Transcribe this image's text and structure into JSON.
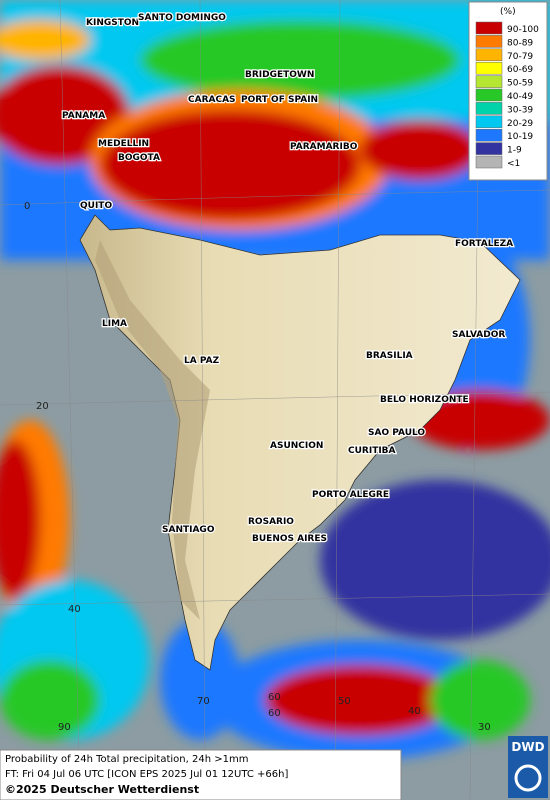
{
  "legend": {
    "title": "(%)",
    "entries": [
      {
        "label": "90-100",
        "color": "#c80000"
      },
      {
        "label": "80-89",
        "color": "#ff7a00"
      },
      {
        "label": "70-79",
        "color": "#ffb400"
      },
      {
        "label": "60-69",
        "color": "#ffff00"
      },
      {
        "label": "50-59",
        "color": "#b4e632"
      },
      {
        "label": "40-49",
        "color": "#28c828"
      },
      {
        "label": "30-39",
        "color": "#00d2aa"
      },
      {
        "label": "20-29",
        "color": "#00c8f0"
      },
      {
        "label": "10-19",
        "color": "#1e78ff"
      },
      {
        "label": "1-9",
        "color": "#3232a0"
      },
      {
        "label": "<1",
        "color": "#b4b4b4"
      }
    ]
  },
  "cities": [
    "KINGSTON",
    "SANTO DOMINGO",
    "BRIDGETOWN",
    "CARACAS",
    "PORT OF SPAIN",
    "PANAMA",
    "MEDELLIN",
    "BOGOTA",
    "PARAMARIBO",
    "QUITO",
    "FORTALEZA",
    "LIMA",
    "SALVADOR",
    "LA PAZ",
    "BRASILIA",
    "BELO HORIZONTE",
    "SAO PAULO",
    "ASUNCION",
    "CURITIBA",
    "PORTO ALEGRE",
    "SANTIAGO",
    "ROSARIO",
    "BUENOS AIRES"
  ],
  "grid_labels": [
    "0",
    "20",
    "40",
    "60",
    "90",
    "70",
    "60",
    "50",
    "40",
    "30"
  ],
  "footer": {
    "line1": "Probability of 24h Total precipitation, 24h >1mm",
    "line2": "FT: Fri 04 Jul 06 UTC [ICON EPS 2025 Jul 01 12UTC +66h]",
    "copyright": "©2025 Deutscher Wetterdienst"
  },
  "logo": "DWD"
}
